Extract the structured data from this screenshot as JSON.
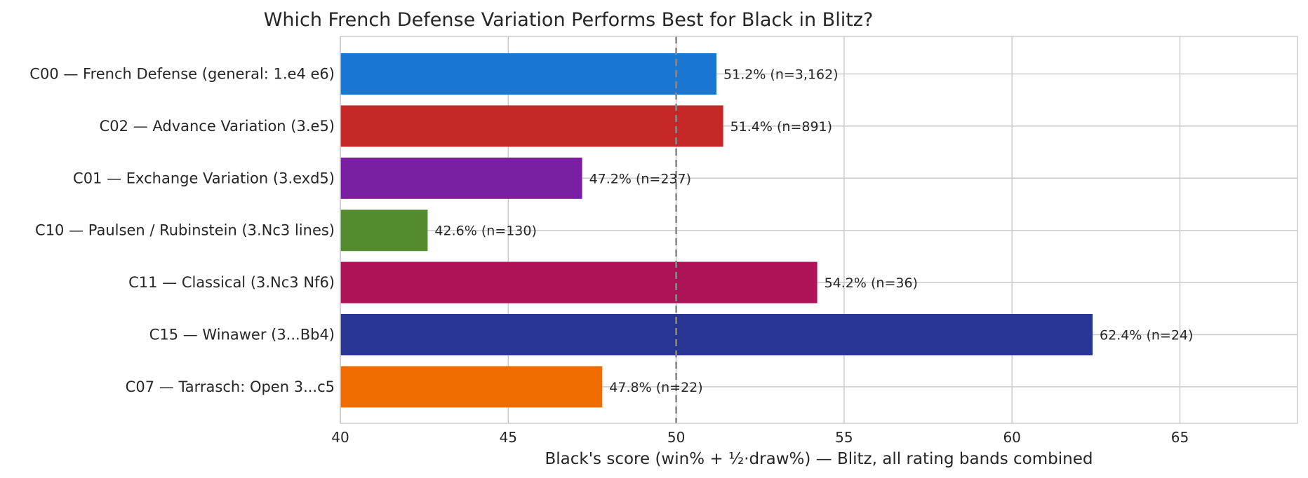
{
  "chart_data": {
    "type": "bar",
    "orientation": "horizontal",
    "title": "Which French Defense Variation Performs Best for Black in Blitz?",
    "xlabel": "Black's score (win% + ½·draw%)  —  Blitz, all rating bands combined",
    "ylabel": "",
    "xlim": [
      40,
      68.5
    ],
    "xticks": [
      40,
      45,
      50,
      55,
      60,
      65
    ],
    "grid": true,
    "reference_line": {
      "x": 50,
      "style": "dashed",
      "color": "#888888"
    },
    "categories": [
      "C00 — French Defense (general: 1.e4 e6)",
      "C02 — Advance Variation (3.e5)",
      "C01 — Exchange Variation (3.exd5)",
      "C10 — Paulsen / Rubinstein (3.Nc3 lines)",
      "C11 — Classical (3.Nc3 Nf6)",
      "C15 — Winawer (3...Bb4)",
      "C07 — Tarrasch: Open 3...c5"
    ],
    "values": [
      51.2,
      51.4,
      47.2,
      42.6,
      54.2,
      62.4,
      47.8
    ],
    "data_labels": [
      "51.2% (n=3,162)",
      "51.4% (n=891)",
      "47.2% (n=237)",
      "42.6% (n=130)",
      "54.2% (n=36)",
      "62.4% (n=24)",
      "47.8% (n=22)"
    ],
    "colors": [
      "#1976d2",
      "#c62828",
      "#7b1fa2",
      "#558b2f",
      "#ad1457",
      "#283593",
      "#ef6c00"
    ]
  }
}
